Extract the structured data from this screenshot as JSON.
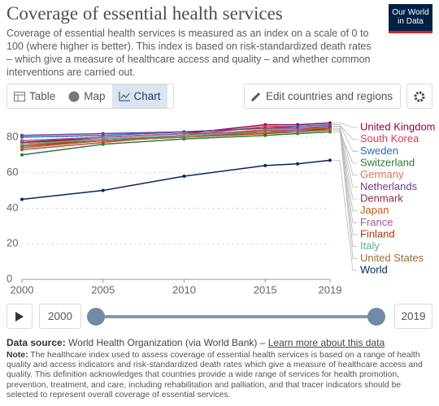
{
  "chart_data": {
    "type": "line",
    "title": "Coverage of essential health services",
    "subtitle": "Coverage of essential health services is measured as an index on a scale of 0 to 100 (where higher is better). This index is based on risk-standardized death rates – which give a measure of healthcare access and quality – and whether common interventions are carried out.",
    "x": [
      2000,
      2005,
      2010,
      2015,
      2017,
      2019
    ],
    "xlim": [
      2000,
      2019
    ],
    "xticks": [
      2000,
      2005,
      2010,
      2015,
      2019
    ],
    "ylim": [
      0,
      90
    ],
    "yticks": [
      0,
      20,
      40,
      60,
      80
    ],
    "grid": true,
    "series": [
      {
        "name": "United Kingdom",
        "color": "#970046",
        "values": [
          77,
          80,
          82,
          87,
          87,
          88
        ]
      },
      {
        "name": "South Korea",
        "color": "#d73c50",
        "values": [
          73,
          77,
          81,
          86,
          86,
          87
        ]
      },
      {
        "name": "Sweden",
        "color": "#286bbb",
        "values": [
          80,
          81,
          83,
          85,
          86,
          87
        ]
      },
      {
        "name": "Switzerland",
        "color": "#2c7a3a",
        "values": [
          70,
          76,
          79,
          81,
          82,
          83
        ]
      },
      {
        "name": "Germany",
        "color": "#e56e5a",
        "values": [
          77,
          79,
          81,
          83,
          84,
          86
        ]
      },
      {
        "name": "Netherlands",
        "color": "#6d3e91",
        "values": [
          81,
          82,
          83,
          85,
          85,
          86
        ]
      },
      {
        "name": "Denmark",
        "color": "#883039",
        "values": [
          77,
          79,
          81,
          84,
          84,
          85
        ]
      },
      {
        "name": "Japan",
        "color": "#c05917",
        "values": [
          76,
          78,
          81,
          84,
          84,
          85
        ]
      },
      {
        "name": "France",
        "color": "#a2559c",
        "values": [
          78,
          80,
          82,
          83,
          84,
          84
        ]
      },
      {
        "name": "Finland",
        "color": "#b13507",
        "values": [
          75,
          78,
          80,
          82,
          83,
          85
        ]
      },
      {
        "name": "Italy",
        "color": "#58ac8c",
        "values": [
          76,
          79,
          81,
          83,
          83,
          84
        ]
      },
      {
        "name": "United States",
        "color": "#996d39",
        "values": [
          74,
          78,
          80,
          83,
          83,
          84
        ]
      },
      {
        "name": "World",
        "color": "#00295b",
        "values": [
          45,
          50,
          58,
          64,
          65,
          67
        ]
      }
    ]
  },
  "ui": {
    "logo": [
      "Our World",
      "in Data"
    ],
    "tabs": [
      "Table",
      "Map",
      "Chart"
    ],
    "edit_button": "Edit countries and regions",
    "source_label": "Data source:",
    "source": "World Health Organization (via World Bank) – ",
    "source_link": "Learn more about this data",
    "note_label": "Note:",
    "note": "The healthcare index used to assess coverage of essential health services is based on a range of health quality and access indicators and risk-standardized death rates which give a measure of healthcare access and quality. This definition acknowledges that countries provide a wide range of services for health promotion, prevention, treatment, and care, including rehabilitation and palliation, and that tracer indicators should be selected to represent overall coverage of essential services."
  }
}
